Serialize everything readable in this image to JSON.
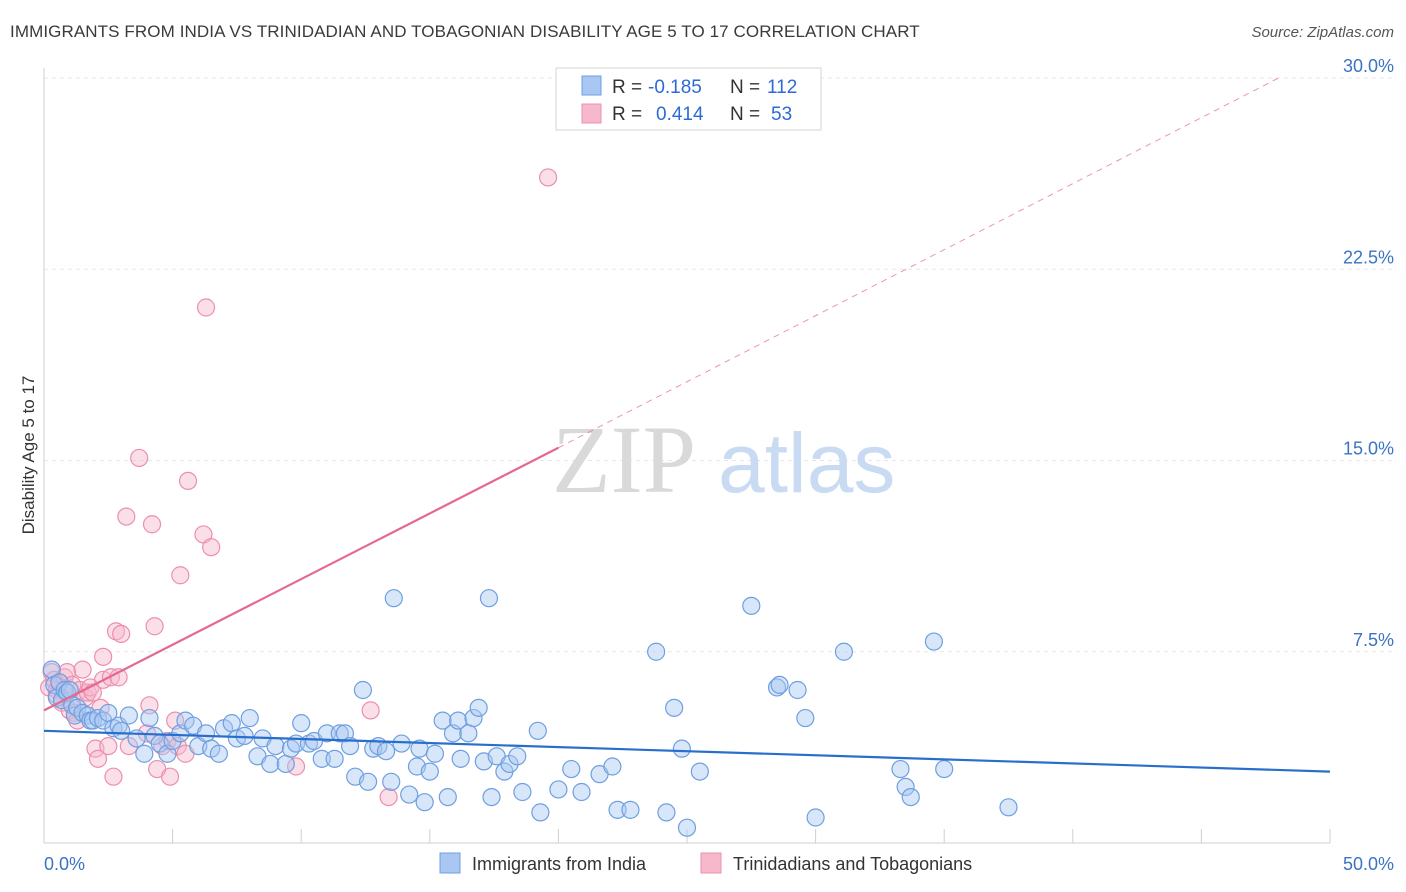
{
  "header": {
    "title": "IMMIGRANTS FROM INDIA VS TRINIDADIAN AND TOBAGONIAN DISABILITY AGE 5 TO 17 CORRELATION CHART",
    "source": "Source: ZipAtlas.com"
  },
  "watermark": {
    "zip": "ZIP",
    "atlas": "atlas"
  },
  "legend": {
    "r_label": "R =",
    "n_label": "N =",
    "india_r": "-0.185",
    "india_n": "112",
    "trin_r": "0.414",
    "trin_n": "53"
  },
  "bottom_legend": {
    "india": "Immigrants from India",
    "trin": "Trinidadians and Tobagonians"
  },
  "chart_data": {
    "type": "scatter",
    "title": "IMMIGRANTS FROM INDIA VS TRINIDADIAN AND TOBAGONIAN DISABILITY AGE 5 TO 17 CORRELATION CHART",
    "xlabel": "",
    "ylabel": "Disability Age 5 to 17",
    "xlim": [
      0,
      50
    ],
    "ylim": [
      0,
      30
    ],
    "x_tick_labels": [
      "0.0%",
      "50.0%"
    ],
    "y_ticks": [
      7.5,
      15.0,
      22.5,
      30.0
    ],
    "y_tick_labels": [
      "7.5%",
      "15.0%",
      "22.5%",
      "30.0%"
    ],
    "grid": true,
    "legend_position": "top-center",
    "colors": {
      "india_fill": "#a9c7f2",
      "india_stroke": "#6f9fe0",
      "india_line": "#2a6ecb",
      "trin_fill": "#f7b8cc",
      "trin_stroke": "#ec8fae",
      "trin_line": "#e5688f"
    },
    "series": [
      {
        "name": "Immigrants from India",
        "R": -0.185,
        "N": 112,
        "trend": {
          "x": [
            0,
            50
          ],
          "y": [
            4.4,
            2.8
          ]
        },
        "points": [
          [
            0.3,
            6.8
          ],
          [
            0.4,
            6.2
          ],
          [
            0.5,
            5.7
          ],
          [
            0.6,
            6.3
          ],
          [
            0.7,
            5.6
          ],
          [
            0.8,
            6.0
          ],
          [
            0.9,
            5.9
          ],
          [
            1.0,
            6.0
          ],
          [
            1.1,
            5.4
          ],
          [
            1.2,
            5.0
          ],
          [
            1.3,
            5.3
          ],
          [
            1.5,
            5.1
          ],
          [
            1.7,
            5.0
          ],
          [
            1.8,
            4.8
          ],
          [
            1.9,
            4.8
          ],
          [
            2.1,
            4.9
          ],
          [
            2.3,
            4.8
          ],
          [
            2.5,
            5.1
          ],
          [
            2.7,
            4.5
          ],
          [
            2.9,
            4.6
          ],
          [
            3.0,
            4.4
          ],
          [
            3.3,
            5.0
          ],
          [
            3.6,
            4.1
          ],
          [
            3.9,
            3.5
          ],
          [
            4.1,
            4.9
          ],
          [
            4.3,
            4.2
          ],
          [
            4.5,
            3.9
          ],
          [
            4.8,
            3.5
          ],
          [
            5.0,
            4.0
          ],
          [
            5.3,
            4.3
          ],
          [
            5.5,
            4.8
          ],
          [
            5.8,
            4.6
          ],
          [
            6.0,
            3.8
          ],
          [
            6.3,
            4.3
          ],
          [
            6.5,
            3.7
          ],
          [
            6.8,
            3.5
          ],
          [
            7.0,
            4.5
          ],
          [
            7.3,
            4.7
          ],
          [
            7.5,
            4.1
          ],
          [
            7.8,
            4.2
          ],
          [
            8.0,
            4.9
          ],
          [
            8.3,
            3.4
          ],
          [
            8.5,
            4.1
          ],
          [
            8.8,
            3.1
          ],
          [
            9.0,
            3.8
          ],
          [
            9.4,
            3.1
          ],
          [
            9.6,
            3.7
          ],
          [
            9.8,
            3.9
          ],
          [
            10.0,
            4.7
          ],
          [
            10.3,
            3.9
          ],
          [
            10.5,
            4.0
          ],
          [
            10.8,
            3.3
          ],
          [
            11.0,
            4.3
          ],
          [
            11.3,
            3.3
          ],
          [
            11.5,
            4.3
          ],
          [
            11.7,
            4.3
          ],
          [
            11.9,
            3.8
          ],
          [
            12.1,
            2.6
          ],
          [
            12.4,
            6.0
          ],
          [
            12.6,
            2.4
          ],
          [
            12.8,
            3.7
          ],
          [
            13.0,
            3.8
          ],
          [
            13.3,
            3.6
          ],
          [
            13.5,
            2.4
          ],
          [
            13.6,
            9.6
          ],
          [
            13.9,
            3.9
          ],
          [
            14.2,
            1.9
          ],
          [
            14.5,
            3.0
          ],
          [
            14.6,
            3.7
          ],
          [
            14.8,
            1.6
          ],
          [
            15.0,
            2.8
          ],
          [
            15.2,
            3.5
          ],
          [
            15.5,
            4.8
          ],
          [
            15.7,
            1.8
          ],
          [
            15.9,
            4.3
          ],
          [
            16.1,
            4.8
          ],
          [
            16.2,
            3.3
          ],
          [
            16.5,
            4.3
          ],
          [
            16.7,
            4.9
          ],
          [
            16.9,
            5.3
          ],
          [
            17.1,
            3.2
          ],
          [
            17.4,
            1.8
          ],
          [
            17.6,
            3.4
          ],
          [
            17.9,
            2.8
          ],
          [
            18.1,
            3.1
          ],
          [
            18.4,
            3.4
          ],
          [
            18.6,
            2.0
          ],
          [
            19.2,
            4.4
          ],
          [
            19.3,
            1.2
          ],
          [
            20.0,
            2.1
          ],
          [
            20.5,
            2.9
          ],
          [
            20.9,
            2.0
          ],
          [
            21.6,
            2.7
          ],
          [
            22.1,
            3.0
          ],
          [
            22.3,
            1.3
          ],
          [
            22.8,
            1.3
          ],
          [
            23.8,
            7.5
          ],
          [
            24.2,
            1.2
          ],
          [
            24.5,
            5.3
          ],
          [
            24.8,
            3.7
          ],
          [
            25.0,
            0.6
          ],
          [
            25.5,
            2.8
          ],
          [
            27.5,
            9.3
          ],
          [
            28.5,
            6.1
          ],
          [
            28.6,
            6.2
          ],
          [
            29.3,
            6.0
          ],
          [
            29.6,
            4.9
          ],
          [
            30.0,
            1.0
          ],
          [
            31.1,
            7.5
          ],
          [
            33.3,
            2.9
          ],
          [
            34.6,
            7.9
          ],
          [
            37.5,
            1.4
          ],
          [
            35.0,
            2.9
          ],
          [
            33.5,
            2.2
          ],
          [
            33.7,
            1.8
          ],
          [
            17.3,
            9.6
          ]
        ]
      },
      {
        "name": "Trinidadians and Tobagonians",
        "R": 0.414,
        "N": 53,
        "trend": {
          "x": [
            0,
            20
          ],
          "y": [
            5.2,
            15.5
          ]
        },
        "trend_dashed": {
          "x": [
            20,
            48
          ],
          "y": [
            15.5,
            30.0
          ]
        },
        "points": [
          [
            0.2,
            6.1
          ],
          [
            0.3,
            6.7
          ],
          [
            0.4,
            6.4
          ],
          [
            0.5,
            6.0
          ],
          [
            0.5,
            5.8
          ],
          [
            0.6,
            6.3
          ],
          [
            0.7,
            5.5
          ],
          [
            0.8,
            6.5
          ],
          [
            0.9,
            6.7
          ],
          [
            1.0,
            5.2
          ],
          [
            1.1,
            6.2
          ],
          [
            1.2,
            5.1
          ],
          [
            1.3,
            4.8
          ],
          [
            1.4,
            6.0
          ],
          [
            1.5,
            6.8
          ],
          [
            1.6,
            5.7
          ],
          [
            1.7,
            5.9
          ],
          [
            1.8,
            6.1
          ],
          [
            1.9,
            5.9
          ],
          [
            2.0,
            3.7
          ],
          [
            2.1,
            3.3
          ],
          [
            2.2,
            5.3
          ],
          [
            2.3,
            6.4
          ],
          [
            2.3,
            7.3
          ],
          [
            2.5,
            3.8
          ],
          [
            2.6,
            6.5
          ],
          [
            2.7,
            2.6
          ],
          [
            2.8,
            8.3
          ],
          [
            2.9,
            6.5
          ],
          [
            3.0,
            8.2
          ],
          [
            3.2,
            12.8
          ],
          [
            3.3,
            3.8
          ],
          [
            3.7,
            15.1
          ],
          [
            4.0,
            4.3
          ],
          [
            4.1,
            5.4
          ],
          [
            4.2,
            12.5
          ],
          [
            4.3,
            8.5
          ],
          [
            4.4,
            2.9
          ],
          [
            4.6,
            3.8
          ],
          [
            4.8,
            4.0
          ],
          [
            4.9,
            2.6
          ],
          [
            5.1,
            4.8
          ],
          [
            5.2,
            3.8
          ],
          [
            5.3,
            10.5
          ],
          [
            5.5,
            3.5
          ],
          [
            5.6,
            14.2
          ],
          [
            6.2,
            12.1
          ],
          [
            6.3,
            21.0
          ],
          [
            6.5,
            11.6
          ],
          [
            9.8,
            3.0
          ],
          [
            12.7,
            5.2
          ],
          [
            13.4,
            1.8
          ],
          [
            19.6,
            26.1
          ]
        ]
      }
    ]
  }
}
